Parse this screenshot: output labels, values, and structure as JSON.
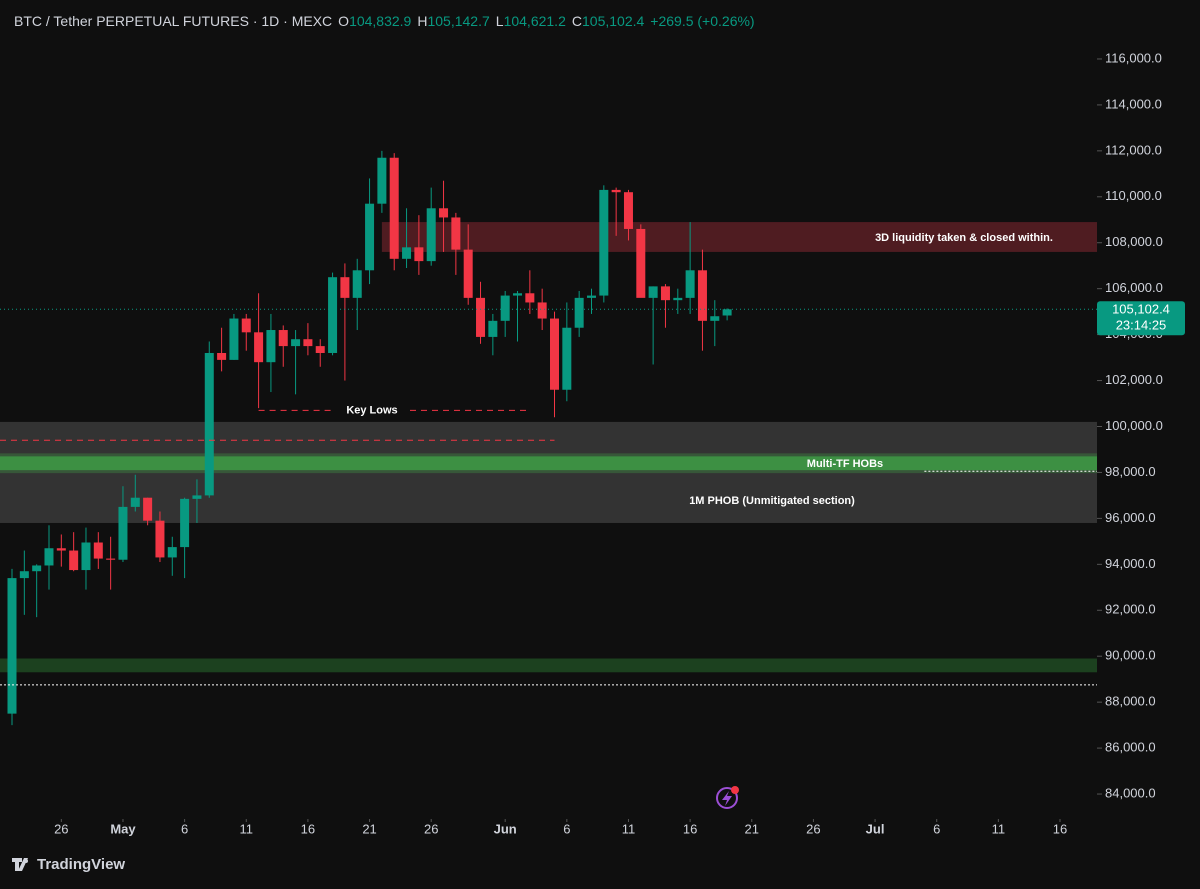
{
  "chart_data": {
    "type": "candlestick",
    "header": {
      "symbol": "BTC / Tether PERPETUAL FUTURES · 1D · MEXC",
      "o_label": "O",
      "o": "104,832.9",
      "h_label": "H",
      "h": "105,142.7",
      "l_label": "L",
      "l": "104,621.2",
      "c_label": "C",
      "c": "105,102.4",
      "change": "+269.5 (+0.26%)"
    },
    "brand": "TradingView",
    "up_color": "#089981",
    "down_color": "#f23645",
    "x": [
      "04-22",
      "04-23",
      "04-24",
      "04-25",
      "04-26",
      "04-27",
      "04-28",
      "04-29",
      "04-30",
      "05-01",
      "05-02",
      "05-03",
      "05-04",
      "05-05",
      "05-06",
      "05-07",
      "05-08",
      "05-09",
      "05-10",
      "05-11",
      "05-12",
      "05-13",
      "05-14",
      "05-15",
      "05-16",
      "05-17",
      "05-18",
      "05-19",
      "05-20",
      "05-21",
      "05-22",
      "05-23",
      "05-24",
      "05-25",
      "05-26",
      "05-27",
      "05-28",
      "05-29",
      "05-30",
      "05-31",
      "06-01",
      "06-02",
      "06-03",
      "06-04",
      "06-05",
      "06-06",
      "06-07",
      "06-08",
      "06-09",
      "06-10",
      "06-11",
      "06-12",
      "06-13",
      "06-14",
      "06-15",
      "06-16",
      "06-17",
      "06-18",
      "06-19"
    ],
    "open": [
      87500,
      93400,
      93700,
      93950,
      94700,
      94600,
      93750,
      94950,
      94250,
      94200,
      96500,
      96900,
      95900,
      94300,
      94750,
      96850,
      97000,
      103200,
      102900,
      104700,
      104100,
      102800,
      104200,
      103500,
      103800,
      103500,
      103200,
      106500,
      105600,
      106800,
      109700,
      111700,
      107300,
      107800,
      107200,
      109500,
      109100,
      107700,
      105600,
      103900,
      104600,
      105700,
      105800,
      105400,
      104700,
      101600,
      104300,
      105600,
      105700,
      110300,
      110200,
      108600,
      105600,
      106100,
      105500,
      105600,
      106800,
      104600,
      104832.9
    ],
    "high": [
      93800,
      94600,
      94000,
      95700,
      95300,
      95400,
      95600,
      95400,
      95200,
      97400,
      97900,
      96900,
      96300,
      95200,
      96900,
      97700,
      103700,
      104300,
      104900,
      104900,
      105800,
      104900,
      104400,
      104200,
      104500,
      103800,
      106700,
      107100,
      107300,
      110800,
      112000,
      111900,
      109500,
      109200,
      110400,
      110700,
      109300,
      108800,
      106300,
      104900,
      105900,
      105900,
      106800,
      106000,
      105000,
      105400,
      105900,
      106000,
      110500,
      110400,
      110300,
      108800,
      106100,
      106200,
      106000,
      108900,
      107700,
      105500,
      105142.7
    ],
    "low": [
      87000,
      91800,
      91700,
      92900,
      93900,
      93700,
      92900,
      93800,
      92900,
      94100,
      96300,
      95700,
      94100,
      93500,
      93400,
      95800,
      96900,
      102400,
      102900,
      103300,
      100800,
      101500,
      102600,
      101400,
      103100,
      102600,
      103100,
      102000,
      104200,
      106200,
      109300,
      106800,
      106900,
      106600,
      107000,
      107600,
      106600,
      105300,
      103600,
      103100,
      103900,
      103700,
      104900,
      104200,
      100400,
      101100,
      103900,
      104900,
      105400,
      108300,
      108100,
      105700,
      102700,
      104300,
      104900,
      104900,
      103300,
      103500,
      104621.2
    ],
    "close": [
      93400,
      93700,
      93950,
      94700,
      94600,
      93750,
      94950,
      94250,
      94200,
      96500,
      96900,
      95900,
      94300,
      94750,
      96850,
      97000,
      103200,
      102900,
      104700,
      104100,
      102800,
      104200,
      103500,
      103800,
      103500,
      103200,
      106500,
      105600,
      106800,
      109700,
      111700,
      107300,
      107800,
      107200,
      109500,
      109100,
      107700,
      105600,
      103900,
      104600,
      105700,
      105800,
      105400,
      104700,
      101600,
      104300,
      105600,
      105700,
      110300,
      110200,
      108600,
      105600,
      106100,
      105500,
      105600,
      106800,
      104600,
      104800,
      105102.4
    ],
    "xlim": [
      "04-22",
      "07-19"
    ],
    "xticks": [
      {
        "value": "04-26",
        "label": "26"
      },
      {
        "value": "05-01",
        "label": "May"
      },
      {
        "value": "05-06",
        "label": "6"
      },
      {
        "value": "05-11",
        "label": "11"
      },
      {
        "value": "05-16",
        "label": "16"
      },
      {
        "value": "05-21",
        "label": "21"
      },
      {
        "value": "05-26",
        "label": "26"
      },
      {
        "value": "06-01",
        "label": "Jun"
      },
      {
        "value": "06-06",
        "label": "6"
      },
      {
        "value": "06-11",
        "label": "11"
      },
      {
        "value": "06-16",
        "label": "16"
      },
      {
        "value": "06-21",
        "label": "21"
      },
      {
        "value": "06-26",
        "label": "26"
      },
      {
        "value": "07-01",
        "label": "Jul"
      },
      {
        "value": "07-06",
        "label": "6"
      },
      {
        "value": "07-11",
        "label": "11"
      },
      {
        "value": "07-16",
        "label": "16"
      }
    ],
    "ylim": [
      83000,
      117000
    ],
    "yticks": [
      {
        "value": 84000,
        "label": "84,000.0"
      },
      {
        "value": 86000,
        "label": "86,000.0"
      },
      {
        "value": 88000,
        "label": "88,000.0"
      },
      {
        "value": 90000,
        "label": "90,000.0"
      },
      {
        "value": 92000,
        "label": "92,000.0"
      },
      {
        "value": 94000,
        "label": "94,000.0"
      },
      {
        "value": 96000,
        "label": "96,000.0"
      },
      {
        "value": 98000,
        "label": "98,000.0"
      },
      {
        "value": 100000,
        "label": "100,000.0"
      },
      {
        "value": 102000,
        "label": "102,000.0"
      },
      {
        "value": 104000,
        "label": "104,000.0"
      },
      {
        "value": 106000,
        "label": "106,000.0"
      },
      {
        "value": 108000,
        "label": "108,000.0"
      },
      {
        "value": 110000,
        "label": "110,000.0"
      },
      {
        "value": 112000,
        "label": "112,000.0"
      },
      {
        "value": 114000,
        "label": "114,000.0"
      },
      {
        "value": 116000,
        "label": "116,000.0"
      }
    ],
    "zones": [
      {
        "from": 95800,
        "to": 100200,
        "color": "#3a3a3a"
      },
      {
        "label": "3D liquidity taken & closed within.",
        "from": 107600,
        "to": 108900,
        "start": "05-22",
        "color": "#5a1f24"
      },
      {
        "label": "Multi-TF HOBs",
        "from": 98100,
        "to": 98700,
        "color": "#3f9a45"
      },
      {
        "label": "1M PHOB (Unmitigated section)",
        "from": 95800,
        "to": 97800,
        "color": "#3a3a3a"
      },
      {
        "from": 89300,
        "to": 89900,
        "color": "#1f4a22"
      }
    ],
    "lines": [
      {
        "value": 99400,
        "end": "05-36",
        "color": "#f23645",
        "style": "dashed"
      },
      {
        "label": "Key Lows",
        "value": 100700,
        "start": "05-12",
        "end": "06-03",
        "color": "#f23645",
        "style": "dashed"
      },
      {
        "value": 98050,
        "start": "07-05",
        "color": "#ffffff",
        "style": "dotted"
      },
      {
        "value": 88750,
        "color": "#ffffff",
        "style": "dotted"
      }
    ],
    "last_price": {
      "value": 105102.4,
      "label": "105,102.4",
      "countdown": "23:14:25"
    }
  }
}
